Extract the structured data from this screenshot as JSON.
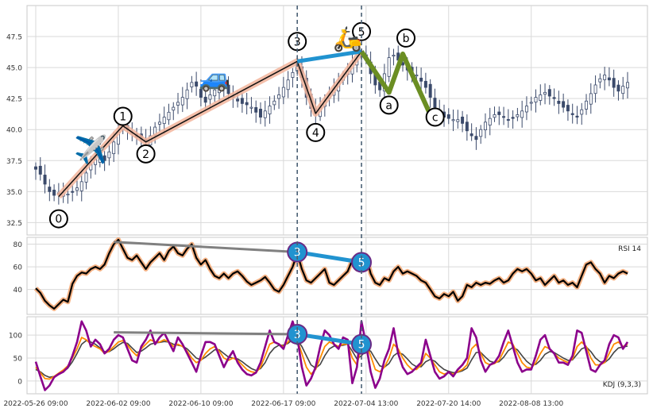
{
  "colors": {
    "grid": "#d9d9d9",
    "frame": "#c8c8c8",
    "candle": "#3b4a6b",
    "wave_band": "#f2b49b",
    "wave_line": "#111111",
    "correction": "#6b8e23",
    "link": "#2193d0",
    "divergence": "#808080",
    "vline": "#4a6075",
    "rsi_halo": "#f4b183",
    "k_line": "#8b008b",
    "d_line": "#ff8c00",
    "j_line": "#444444"
  },
  "chart_data": [
    {
      "type": "candlestick",
      "name": "price",
      "ylim": [
        31.5,
        50
      ],
      "yticks": [
        "32.5",
        "35.0",
        "37.5",
        "40.0",
        "42.5",
        "45.0",
        "47.5"
      ],
      "x_count": 130,
      "xtick_labels": [
        "2022-05-26 09:00",
        "2022-06-02 09:00",
        "2022-06-10 09:00",
        "2022-06-17 09:00",
        "2022-07-04 13:00",
        "2022-07-20 14:00",
        "2022-08-08 13:00"
      ],
      "xtick_index": [
        0,
        18,
        36,
        54,
        72,
        90,
        108
      ],
      "close": [
        36.8,
        36.4,
        35.6,
        35.0,
        34.7,
        34.8,
        34.9,
        34.8,
        35.0,
        35.3,
        35.8,
        36.5,
        37.2,
        37.6,
        37.8,
        37.5,
        38.2,
        39.0,
        39.8,
        40.2,
        40.0,
        39.7,
        39.4,
        39.2,
        39.0,
        39.5,
        40.2,
        40.6,
        41.0,
        41.4,
        41.8,
        42.2,
        42.6,
        43.2,
        43.8,
        43.5,
        42.6,
        42.2,
        42.8,
        43.2,
        43.6,
        43.4,
        42.9,
        42.6,
        42.3,
        42.1,
        42.0,
        41.8,
        41.4,
        41.0,
        41.5,
        41.9,
        42.3,
        42.8,
        43.4,
        44.0,
        44.6,
        45.3,
        44.2,
        42.6,
        41.7,
        41.3,
        41.8,
        42.3,
        42.9,
        43.3,
        43.8,
        44.3,
        44.7,
        45.3,
        45.6,
        46.0,
        45.7,
        44.5,
        43.6,
        43.2,
        44.5,
        45.8,
        46.0,
        45.6,
        45.2,
        44.8,
        44.3,
        44.4,
        43.9,
        43.4,
        42.6,
        41.8,
        41.3,
        41.0,
        40.9,
        40.8,
        40.8,
        40.5,
        39.9,
        39.5,
        39.2,
        40.0,
        40.6,
        40.9,
        41.2,
        41.2,
        41.0,
        40.8,
        40.9,
        41.2,
        41.5,
        41.9,
        42.2,
        42.6,
        42.8,
        43.0,
        42.7,
        42.5,
        42.1,
        41.8,
        41.5,
        41.2,
        41.0,
        41.6,
        42.3,
        42.9,
        43.6,
        44.1,
        44.4,
        44.0,
        43.4,
        43.1,
        43.5,
        43.8
      ],
      "wave_labels": [
        "0",
        "1",
        "2",
        "3",
        "4",
        "5",
        "a",
        "b",
        "c"
      ],
      "wave_points": [
        {
          "label": "0",
          "x": 5,
          "y": 34.6
        },
        {
          "label": "1",
          "x": 19,
          "y": 40.3
        },
        {
          "label": "2",
          "x": 24,
          "y": 39.0
        },
        {
          "label": "3",
          "x": 57,
          "y": 45.5
        },
        {
          "label": "4",
          "x": 61,
          "y": 41.3
        },
        {
          "label": "5",
          "x": 71,
          "y": 46.3
        },
        {
          "label": "a",
          "x": 77,
          "y": 43.0
        },
        {
          "label": "b",
          "x": 80,
          "y": 46.1
        },
        {
          "label": "c",
          "x": 86,
          "y": 41.2
        }
      ],
      "vlines_at": [
        57,
        71
      ]
    },
    {
      "type": "line",
      "name": "rsi",
      "legend": "RSI 14",
      "ylim": [
        18,
        86
      ],
      "yticks": [
        "40",
        "60",
        "80"
      ],
      "markers": [
        {
          "label": "3",
          "x": 57,
          "y": 73
        },
        {
          "label": "5",
          "x": 71,
          "y": 64
        }
      ],
      "divergence": [
        {
          "x": 17,
          "y": 82
        },
        {
          "x": 57,
          "y": 73
        }
      ],
      "values": [
        41,
        37,
        30,
        26,
        23,
        27,
        31,
        29,
        45,
        52,
        55,
        54,
        58,
        60,
        58,
        62,
        72,
        80,
        84,
        76,
        68,
        66,
        70,
        64,
        58,
        64,
        68,
        72,
        66,
        74,
        78,
        72,
        70,
        76,
        80,
        68,
        62,
        66,
        58,
        52,
        50,
        54,
        50,
        54,
        56,
        52,
        47,
        44,
        46,
        48,
        51,
        46,
        40,
        38,
        44,
        52,
        60,
        72,
        58,
        48,
        46,
        50,
        54,
        58,
        46,
        44,
        48,
        52,
        56,
        66,
        58,
        60,
        70,
        54,
        46,
        44,
        50,
        48,
        56,
        60,
        54,
        56,
        54,
        52,
        48,
        46,
        40,
        34,
        32,
        36,
        34,
        38,
        30,
        34,
        44,
        42,
        46,
        44,
        46,
        45,
        48,
        50,
        46,
        48,
        54,
        58,
        56,
        58,
        54,
        48,
        50,
        44,
        48,
        52,
        46,
        48,
        44,
        46,
        42,
        52,
        62,
        64,
        58,
        54,
        46,
        52,
        50,
        54,
        56,
        54
      ]
    },
    {
      "type": "line",
      "name": "kdj",
      "legend": "KDJ (9,3,3)",
      "ylim": [
        -28,
        140
      ],
      "yticks": [
        "0",
        "50",
        "100"
      ],
      "markers": [
        {
          "label": "3",
          "x": 57,
          "y": 102
        },
        {
          "label": "5",
          "x": 71,
          "y": 80
        }
      ],
      "divergence": [
        {
          "x": 17,
          "y": 106
        },
        {
          "x": 57,
          "y": 102
        }
      ],
      "series": [
        {
          "name": "K",
          "values": [
            42,
            10,
            -20,
            -10,
            8,
            15,
            20,
            30,
            55,
            85,
            130,
            110,
            75,
            90,
            80,
            60,
            70,
            90,
            100,
            95,
            70,
            45,
            40,
            75,
            90,
            110,
            80,
            95,
            105,
            85,
            65,
            95,
            80,
            60,
            40,
            20,
            55,
            85,
            85,
            80,
            55,
            30,
            50,
            65,
            40,
            25,
            15,
            12,
            18,
            40,
            75,
            110,
            85,
            80,
            70,
            100,
            130,
            95,
            30,
            -10,
            5,
            30,
            75,
            110,
            100,
            80,
            70,
            95,
            90,
            -5,
            30,
            130,
            80,
            20,
            -15,
            5,
            45,
            70,
            115,
            60,
            30,
            15,
            20,
            30,
            40,
            90,
            55,
            20,
            5,
            10,
            20,
            10,
            25,
            35,
            50,
            115,
            95,
            45,
            20,
            35,
            40,
            55,
            85,
            110,
            75,
            40,
            20,
            25,
            25,
            55,
            90,
            100,
            70,
            60,
            40,
            40,
            35,
            55,
            110,
            105,
            65,
            25,
            20,
            35,
            45,
            80,
            100,
            95,
            70,
            85
          ]
        },
        {
          "name": "D",
          "values": [
            30,
            18,
            5,
            4,
            10,
            17,
            24,
            33,
            50,
            70,
            95,
            90,
            80,
            75,
            70,
            60,
            65,
            75,
            85,
            88,
            78,
            65,
            55,
            70,
            80,
            90,
            85,
            85,
            90,
            85,
            75,
            80,
            75,
            65,
            50,
            40,
            45,
            60,
            70,
            75,
            65,
            50,
            45,
            50,
            45,
            35,
            25,
            20,
            18,
            30,
            55,
            80,
            85,
            80,
            75,
            85,
            100,
            90,
            60,
            30,
            15,
            25,
            50,
            75,
            85,
            80,
            75,
            80,
            80,
            50,
            35,
            75,
            80,
            55,
            25,
            20,
            30,
            50,
            80,
            70,
            50,
            35,
            25,
            25,
            35,
            60,
            50,
            35,
            20,
            15,
            18,
            15,
            20,
            25,
            35,
            70,
            80,
            60,
            40,
            35,
            38,
            45,
            65,
            85,
            80,
            60,
            40,
            30,
            28,
            40,
            60,
            75,
            70,
            60,
            50,
            45,
            40,
            48,
            75,
            85,
            75,
            50,
            35,
            35,
            40,
            60,
            80,
            85,
            75,
            80
          ]
        },
        {
          "name": "J",
          "values": [
            25,
            20,
            12,
            8,
            10,
            14,
            20,
            28,
            42,
            60,
            80,
            88,
            85,
            80,
            72,
            64,
            64,
            70,
            78,
            84,
            82,
            72,
            62,
            65,
            72,
            80,
            83,
            84,
            86,
            85,
            80,
            78,
            76,
            70,
            60,
            50,
            46,
            52,
            60,
            68,
            68,
            60,
            52,
            50,
            48,
            42,
            34,
            27,
            23,
            27,
            40,
            60,
            72,
            78,
            78,
            82,
            90,
            90,
            75,
            55,
            35,
            28,
            36,
            55,
            70,
            76,
            76,
            78,
            80,
            65,
            48,
            55,
            68,
            65,
            48,
            33,
            30,
            38,
            55,
            62,
            58,
            48,
            37,
            31,
            31,
            42,
            47,
            43,
            33,
            25,
            21,
            18,
            19,
            22,
            28,
            46,
            62,
            62,
            52,
            43,
            40,
            42,
            52,
            66,
            73,
            68,
            55,
            43,
            35,
            36,
            45,
            58,
            64,
            62,
            56,
            50,
            45,
            46,
            58,
            70,
            74,
            64,
            50,
            42,
            40,
            48,
            62,
            72,
            74,
            76
          ]
        }
      ]
    }
  ]
}
